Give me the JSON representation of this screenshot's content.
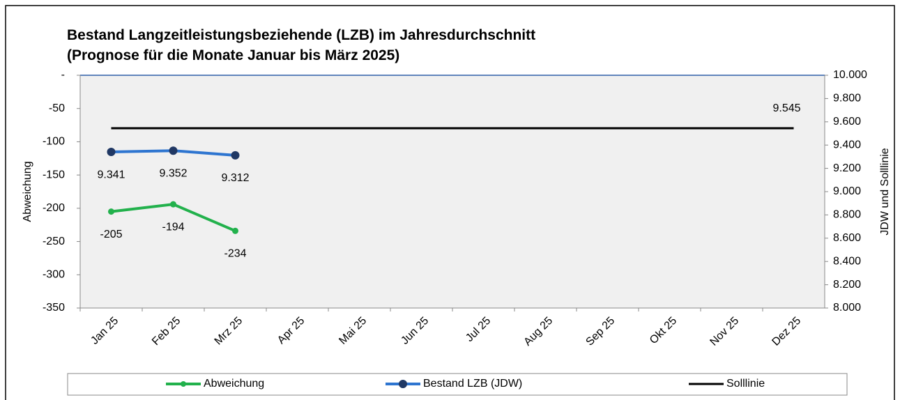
{
  "chart_data": {
    "type": "line",
    "title": [
      "Bestand Langzeitleistungsbeziehende (LZB) im Jahresdurchschnitt",
      "(Prognose für die Monate Januar bis März 2025)"
    ],
    "categories": [
      "Jan 25",
      "Feb 25",
      "Mrz 25",
      "Apr 25",
      "Mai 25",
      "Jun 25",
      "Jul 25",
      "Aug 25",
      "Sep 25",
      "Okt 25",
      "Nov 25",
      "Dez 25"
    ],
    "ylabel": "Abweichung",
    "y2label": "JDW und Solllinie",
    "ylim": [
      -350,
      0
    ],
    "yticks": [
      {
        "value": 0,
        "label": "-"
      },
      -50,
      -100,
      -150,
      -200,
      -250,
      -300,
      -350
    ],
    "y2lim": [
      8000,
      10000
    ],
    "y2ticks": [
      {
        "value": 8000,
        "label": "8.000"
      },
      {
        "value": 8200,
        "label": "8.200"
      },
      {
        "value": 8400,
        "label": "8.400"
      },
      {
        "value": 8600,
        "label": "8.600"
      },
      {
        "value": 8800,
        "label": "8.800"
      },
      {
        "value": 9000,
        "label": "9.000"
      },
      {
        "value": 9200,
        "label": "9.200"
      },
      {
        "value": 9400,
        "label": "9.400"
      },
      {
        "value": 9600,
        "label": "9.600"
      },
      {
        "value": 9800,
        "label": "9.800"
      },
      {
        "value": 10000,
        "label": "10.000"
      }
    ],
    "legend": "bottom",
    "series": [
      {
        "name": "Abweichung",
        "color": "#22b14c",
        "marker_color": "#22b14c",
        "values": [
          -205,
          -194,
          -234,
          null,
          null,
          null,
          null,
          null,
          null,
          null,
          null,
          null
        ]
      },
      {
        "name": "Bestand LZB (JDW)",
        "color": "#2e75d0",
        "marker_color": "#203864",
        "axis": "y2",
        "values": [
          9341,
          9352,
          9312,
          null,
          null,
          null,
          null,
          null,
          null,
          null,
          null,
          null
        ],
        "value_labels": [
          "9.341",
          "9.352",
          "9.312",
          null,
          null,
          null,
          null,
          null,
          null,
          null,
          null,
          null
        ]
      },
      {
        "name": "Solllinie",
        "color": "#000000",
        "axis": "y2",
        "values": [
          9545,
          9545,
          9545,
          9545,
          9545,
          9545,
          9545,
          9545,
          9545,
          9545,
          9545,
          9545
        ],
        "value_labels": [
          null,
          null,
          null,
          null,
          null,
          null,
          null,
          null,
          null,
          null,
          null,
          "9.545"
        ]
      }
    ]
  }
}
